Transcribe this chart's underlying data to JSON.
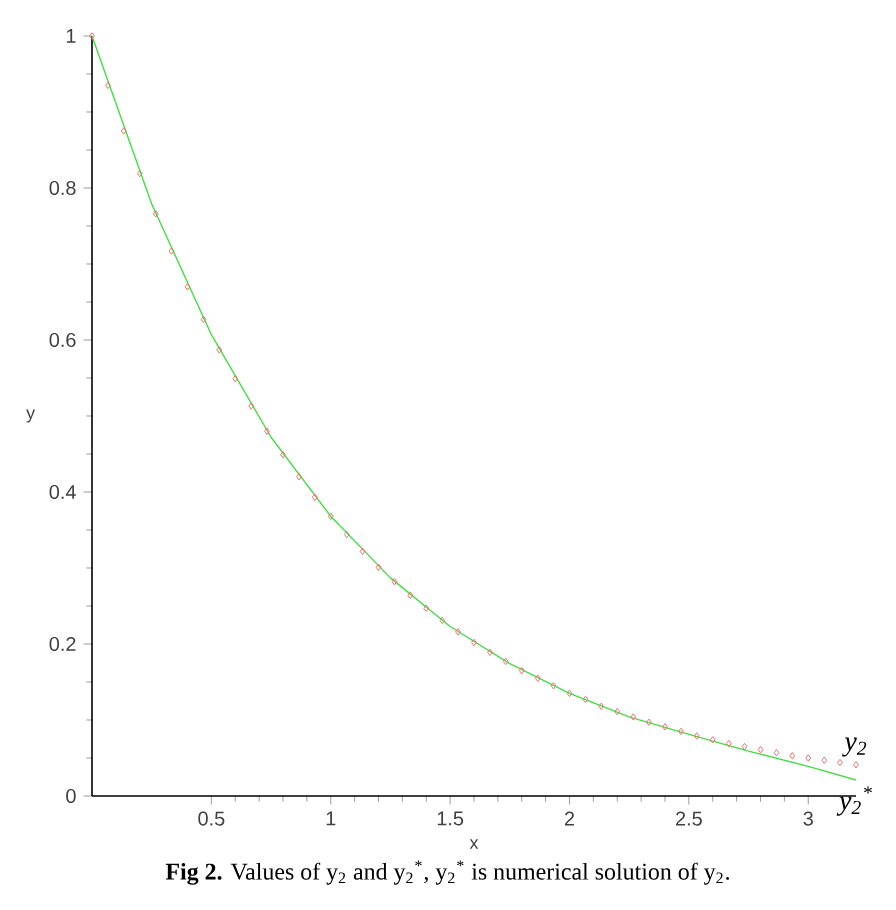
{
  "chart_data": {
    "type": "line",
    "xlabel": "x",
    "ylabel": "y",
    "xlim": [
      0,
      3.2
    ],
    "ylim": [
      0,
      1
    ],
    "xticks": [
      0.5,
      1,
      1.5,
      2,
      2.5,
      3
    ],
    "yticks": [
      0,
      0.2,
      0.4,
      0.6,
      0.8,
      1
    ],
    "series": [
      {
        "name": "y$_{2}$",
        "type": "scatter",
        "marker": "diamond",
        "color": "#ee6f6f",
        "x": [
          0,
          0.067,
          0.133,
          0.2,
          0.267,
          0.333,
          0.4,
          0.467,
          0.533,
          0.6,
          0.667,
          0.733,
          0.8,
          0.867,
          0.933,
          1,
          1.067,
          1.133,
          1.2,
          1.267,
          1.333,
          1.4,
          1.467,
          1.533,
          1.6,
          1.667,
          1.733,
          1.8,
          1.867,
          1.933,
          2,
          2.067,
          2.133,
          2.2,
          2.267,
          2.333,
          2.4,
          2.467,
          2.533,
          2.6,
          2.667,
          2.733,
          2.8,
          2.867,
          2.933,
          3,
          3.067,
          3.133,
          3.2
        ],
        "values": [
          1,
          0.935,
          0.875,
          0.819,
          0.766,
          0.717,
          0.67,
          0.627,
          0.587,
          0.549,
          0.513,
          0.48,
          0.449,
          0.42,
          0.393,
          0.368,
          0.344,
          0.322,
          0.301,
          0.282,
          0.264,
          0.247,
          0.231,
          0.216,
          0.202,
          0.189,
          0.177,
          0.165,
          0.155,
          0.145,
          0.135,
          0.127,
          0.118,
          0.111,
          0.104,
          0.097,
          0.091,
          0.085,
          0.079,
          0.074,
          0.069,
          0.065,
          0.061,
          0.057,
          0.053,
          0.05,
          0.047,
          0.044,
          0.041
        ]
      },
      {
        "name": "y$_{2}$$^{*}$",
        "line_style": "solid",
        "color": "#44dd44",
        "x": [
          0,
          0.25,
          0.5,
          0.75,
          1,
          1.25,
          1.5,
          1.75,
          2,
          2.25,
          2.5,
          2.75,
          3,
          3.2
        ],
        "values": [
          1,
          0.779,
          0.607,
          0.472,
          0.368,
          0.287,
          0.223,
          0.174,
          0.135,
          0.104,
          0.081,
          0.059,
          0.039,
          0.021
        ]
      }
    ],
    "annotations": [
      "**Fig 2.** Values of y$_{2}$ and y$_{2}$$^{*}$, y$_{2}$$^{*}$ is numerical solution of y$_{2}$."
    ]
  }
}
